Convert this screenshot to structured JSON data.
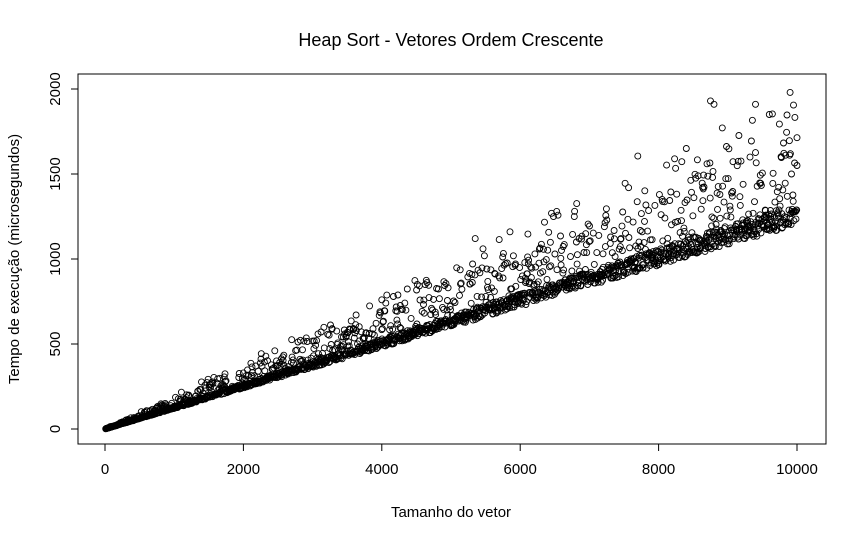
{
  "chart_data": {
    "type": "scatter",
    "title": "Heap Sort - Vetores Ordem Crescente",
    "xlabel": "Tamanho do vetor",
    "ylabel": "Tempo de execução (microsegundos)",
    "xlim": [
      0,
      10000
    ],
    "ylim": [
      0,
      2000
    ],
    "xticks": [
      0,
      2000,
      4000,
      6000,
      8000,
      10000
    ],
    "yticks": [
      0,
      500,
      1000,
      1500,
      2000
    ],
    "grid": false,
    "legend": "none",
    "marker": "open-circle",
    "point_color": "#000000",
    "trend": {
      "baseline_slope": 0.124,
      "point_count": 2000,
      "x_min": 10,
      "x_max": 10000
    },
    "notable_points": [
      {
        "x": 8750,
        "y": 1930
      },
      {
        "x": 8800,
        "y": 1910
      },
      {
        "x": 9400,
        "y": 1910
      },
      {
        "x": 9900,
        "y": 1980
      },
      {
        "x": 9950,
        "y": 1905
      },
      {
        "x": 7700,
        "y": 1605
      },
      {
        "x": 5350,
        "y": 1120
      },
      {
        "x": 4000,
        "y": 760
      },
      {
        "x": 2000,
        "y": 330
      },
      {
        "x": 8700,
        "y": 1560
      },
      {
        "x": 9600,
        "y": 1850
      },
      {
        "x": 10000,
        "y": 1550
      }
    ]
  }
}
